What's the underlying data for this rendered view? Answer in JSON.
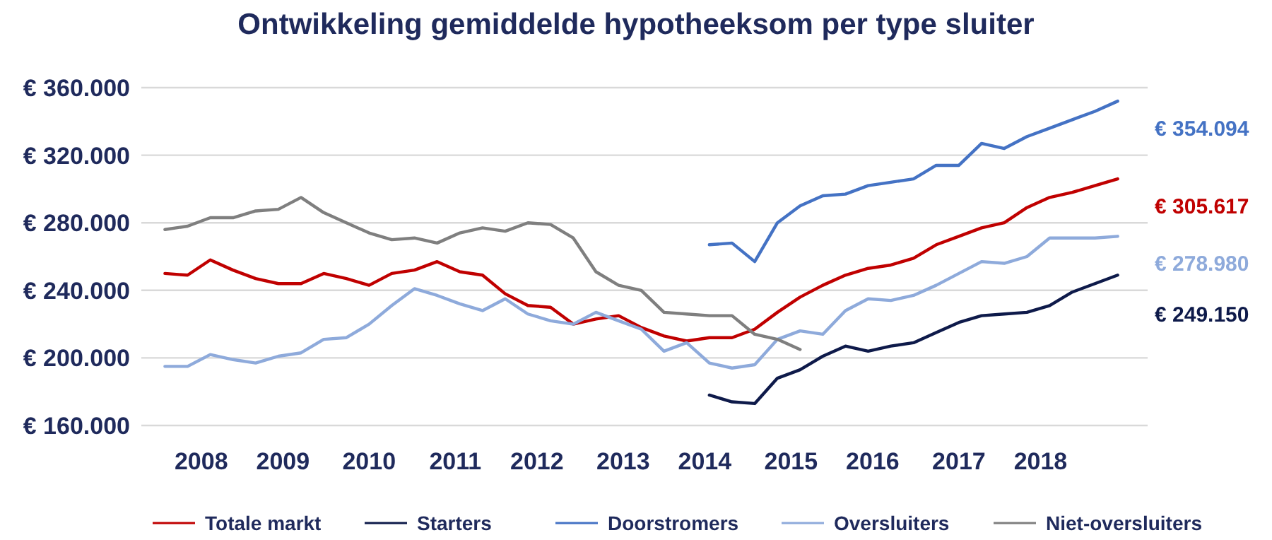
{
  "chart_data": {
    "type": "line",
    "title": "Ontwikkeling gemiddelde hypotheeksom per type sluiter",
    "x": [
      2008,
      2008.25,
      2008.5,
      2008.75,
      2009,
      2009.25,
      2009.5,
      2009.75,
      2010,
      2010.25,
      2010.5,
      2010.75,
      2011,
      2011.25,
      2011.5,
      2011.75,
      2012,
      2012.25,
      2012.5,
      2012.75,
      2013,
      2013.25,
      2013.5,
      2013.75,
      2014,
      2014.25,
      2014.5,
      2014.75,
      2015,
      2015.25,
      2015.5,
      2015.75,
      2016,
      2016.25,
      2016.5,
      2016.75,
      2017,
      2017.25,
      2017.5,
      2017.75,
      2018,
      2018.25,
      2018.5
    ],
    "series": [
      {
        "name": "Totale markt",
        "color": "#c00000",
        "values": [
          250000,
          249000,
          258000,
          252000,
          247000,
          244000,
          244000,
          250000,
          247000,
          243000,
          250000,
          252000,
          257000,
          251000,
          249000,
          238000,
          231000,
          230000,
          220000,
          223000,
          225000,
          218000,
          213000,
          210000,
          212000,
          212000,
          217000,
          227000,
          236000,
          243000,
          249000,
          253000,
          255000,
          259000,
          267000,
          272000,
          277000,
          280000,
          289000,
          295000,
          298000,
          302000,
          306000
        ]
      },
      {
        "name": "Starters",
        "color": "#0e1a4a",
        "values": [
          null,
          null,
          null,
          null,
          null,
          null,
          null,
          null,
          null,
          null,
          null,
          null,
          null,
          null,
          null,
          null,
          null,
          null,
          null,
          null,
          null,
          null,
          null,
          null,
          178000,
          174000,
          173000,
          188000,
          193000,
          201000,
          207000,
          204000,
          207000,
          209000,
          215000,
          221000,
          225000,
          226000,
          227000,
          231000,
          239000,
          244000,
          249000
        ]
      },
      {
        "name": "Doorstromers",
        "color": "#4472c4",
        "values": [
          null,
          null,
          null,
          null,
          null,
          null,
          null,
          null,
          null,
          null,
          null,
          null,
          null,
          null,
          null,
          null,
          null,
          null,
          null,
          null,
          null,
          null,
          null,
          null,
          267000,
          268000,
          257000,
          280000,
          290000,
          296000,
          297000,
          302000,
          304000,
          306000,
          314000,
          314000,
          327000,
          324000,
          331000,
          336000,
          341000,
          346000,
          352000
        ]
      },
      {
        "name": "Oversluiters",
        "color": "#8eaadb",
        "values": [
          195000,
          195000,
          202000,
          199000,
          197000,
          201000,
          203000,
          211000,
          212000,
          220000,
          231000,
          241000,
          237000,
          232000,
          228000,
          235000,
          226000,
          222000,
          220000,
          227000,
          222000,
          217000,
          204000,
          209000,
          197000,
          194000,
          196000,
          211000,
          216000,
          214000,
          228000,
          235000,
          234000,
          237000,
          243000,
          250000,
          257000,
          256000,
          260000,
          271000,
          271000,
          271000,
          272000
        ]
      },
      {
        "name": "Niet-oversluiters",
        "color": "#7f7f7f",
        "values": [
          276000,
          278000,
          283000,
          283000,
          287000,
          288000,
          295000,
          286000,
          280000,
          274000,
          270000,
          271000,
          268000,
          274000,
          277000,
          275000,
          280000,
          279000,
          271000,
          251000,
          243000,
          240000,
          227000,
          226000,
          225000,
          225000,
          214000,
          211000,
          205000,
          null,
          null,
          null,
          null,
          null,
          null,
          null,
          null,
          null,
          null,
          null,
          null,
          null,
          null
        ]
      }
    ],
    "xlim": [
      2007.74,
      2018.83
    ],
    "xticks": [
      {
        "value": 2008.4,
        "label": "2008"
      },
      {
        "value": 2009.3,
        "label": "2009"
      },
      {
        "value": 2010.25,
        "label": "2010"
      },
      {
        "value": 2011.2,
        "label": "2011"
      },
      {
        "value": 2012.1,
        "label": "2012"
      },
      {
        "value": 2013.05,
        "label": "2013"
      },
      {
        "value": 2013.95,
        "label": "2014"
      },
      {
        "value": 2014.9,
        "label": "2015"
      },
      {
        "value": 2015.8,
        "label": "2016"
      },
      {
        "value": 2016.75,
        "label": "2017"
      },
      {
        "value": 2017.65,
        "label": "2018"
      }
    ],
    "ylim": [
      160000,
      360000
    ],
    "yticks": [
      {
        "value": 160000,
        "label": "€ 160.000"
      },
      {
        "value": 200000,
        "label": "€ 200.000"
      },
      {
        "value": 240000,
        "label": "€ 240.000"
      },
      {
        "value": 280000,
        "label": "€ 280.000"
      },
      {
        "value": 320000,
        "label": "€ 320.000"
      },
      {
        "value": 360000,
        "label": "€ 360.000"
      }
    ],
    "annotations": [
      "€ 354.094",
      "€ 305.617",
      "€ 278.980",
      "€ 249.150"
    ],
    "grid": "y",
    "legend": "bottom",
    "line_style": "solid",
    "marker": "none"
  }
}
